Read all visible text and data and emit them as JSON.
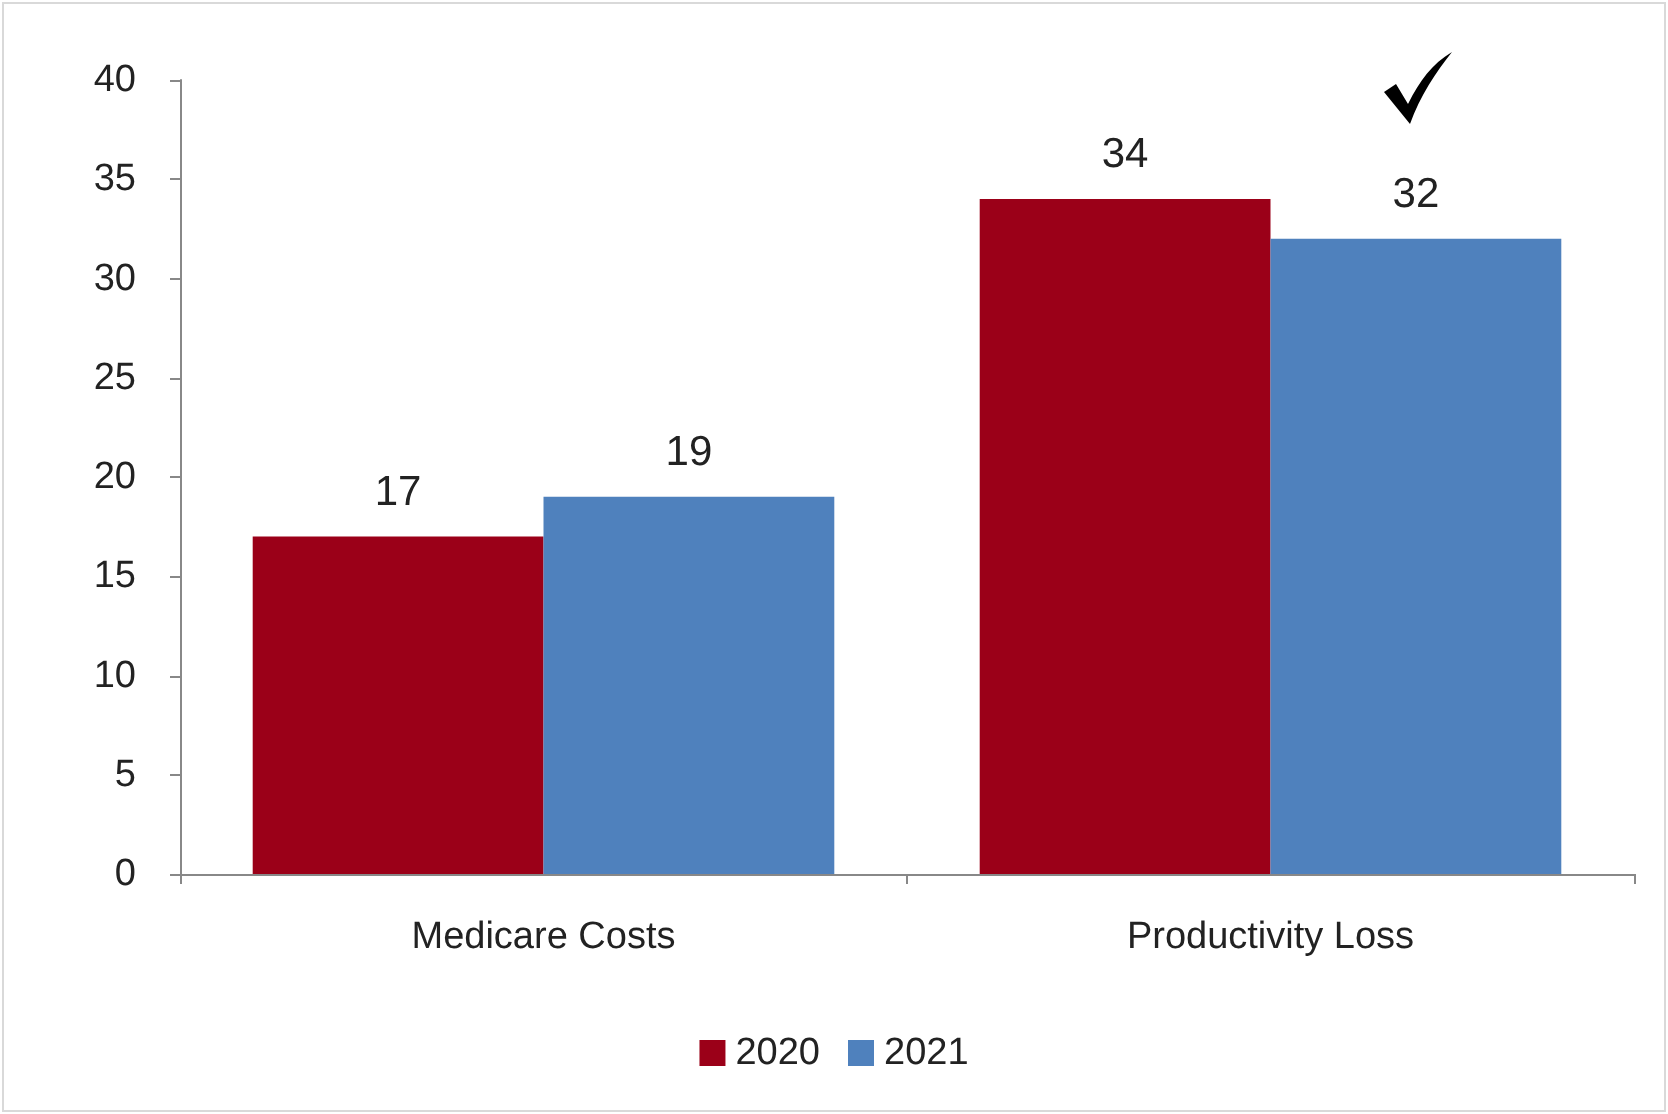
{
  "chart_data": {
    "type": "bar",
    "categories": [
      "Medicare Costs",
      "Productivity Loss"
    ],
    "series": [
      {
        "name": "2020",
        "color": "#9b0018",
        "values": [
          17,
          34
        ]
      },
      {
        "name": "2021",
        "color": "#4f81bd",
        "values": [
          19,
          32
        ]
      }
    ],
    "ylim": [
      0,
      40
    ],
    "yticks": [
      0,
      5,
      10,
      15,
      20,
      25,
      30,
      35,
      40
    ],
    "grid": false,
    "legend": "bottom",
    "data_labels": true
  }
}
